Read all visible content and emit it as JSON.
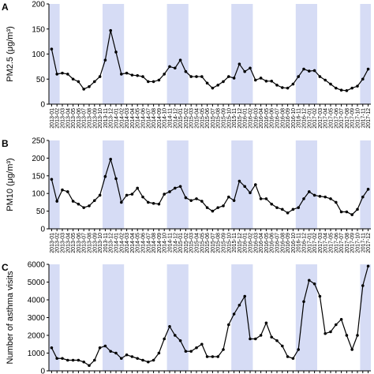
{
  "chart_data": [
    {
      "type": "line",
      "panel": "A",
      "ylabel": "PM2.5 (μg/m³)",
      "color": "#000000",
      "shade_color": "#d6dcf5",
      "categories": [
        "2013-01",
        "2013-02",
        "2013-03",
        "2013-04",
        "2013-05",
        "2013-06",
        "2013-07",
        "2013-08",
        "2013-09",
        "2013-10",
        "2013-11",
        "2013-12",
        "2014-01",
        "2014-02",
        "2014-03",
        "2014-04",
        "2014-05",
        "2014-06",
        "2014-07",
        "2014-08",
        "2014-09",
        "2014-10",
        "2014-11",
        "2014-12",
        "2015-01",
        "2015-02",
        "2015-03",
        "2015-04",
        "2015-05",
        "2015-06",
        "2015-07",
        "2015-08",
        "2015-09",
        "2015-10",
        "2015-11",
        "2015-12",
        "2016-01",
        "2016-02",
        "2016-03",
        "2016-04",
        "2016-05",
        "2016-06",
        "2016-07",
        "2016-08",
        "2016-09",
        "2016-10",
        "2016-11",
        "2016-12",
        "2017-01",
        "2017-02",
        "2017-03",
        "2017-04",
        "2017-05",
        "2017-06",
        "2017-07",
        "2017-08",
        "2017-09",
        "2017-10",
        "2017-11",
        "2017-12"
      ],
      "shaded": [
        [
          "2013-01",
          "2013-02"
        ],
        [
          "2013-11",
          "2014-02"
        ],
        [
          "2014-11",
          "2015-02"
        ],
        [
          "2015-11",
          "2016-02"
        ],
        [
          "2016-11",
          "2017-02"
        ],
        [
          "2017-11",
          "2017-12"
        ]
      ],
      "values": [
        110,
        60,
        62,
        60,
        50,
        45,
        30,
        35,
        45,
        55,
        88,
        147,
        104,
        60,
        62,
        58,
        57,
        55,
        45,
        45,
        48,
        60,
        75,
        72,
        88,
        65,
        55,
        55,
        55,
        42,
        32,
        38,
        45,
        55,
        52,
        80,
        65,
        72,
        48,
        52,
        46,
        46,
        38,
        33,
        32,
        40,
        55,
        70,
        66,
        67,
        55,
        48,
        40,
        32,
        28,
        27,
        32,
        36,
        50,
        70
      ],
      "ylim": [
        0,
        200
      ],
      "yticks": [
        0,
        50,
        100,
        150,
        200
      ]
    },
    {
      "type": "line",
      "panel": "B",
      "ylabel": "PM10 (μg/m³)",
      "color": "#000000",
      "shade_color": "#d6dcf5",
      "categories": [
        "2013-01",
        "2013-02",
        "2013-03",
        "2013-04",
        "2013-05",
        "2013-06",
        "2013-07",
        "2013-08",
        "2013-09",
        "2013-10",
        "2013-11",
        "2013-12",
        "2014-01",
        "2014-02",
        "2014-03",
        "2014-04",
        "2014-05",
        "2014-06",
        "2014-07",
        "2014-08",
        "2014-09",
        "2014-10",
        "2014-11",
        "2014-12",
        "2015-01",
        "2015-02",
        "2015-03",
        "2015-04",
        "2015-05",
        "2015-06",
        "2015-07",
        "2015-08",
        "2015-09",
        "2015-10",
        "2015-11",
        "2015-12",
        "2016-01",
        "2016-02",
        "2016-03",
        "2016-04",
        "2016-05",
        "2016-06",
        "2016-07",
        "2016-08",
        "2016-09",
        "2016-10",
        "2016-11",
        "2016-12",
        "2017-01",
        "2017-02",
        "2017-03",
        "2017-04",
        "2017-05",
        "2017-06",
        "2017-07",
        "2017-08",
        "2017-09",
        "2017-10",
        "2017-11",
        "2017-12"
      ],
      "shaded": [
        [
          "2013-01",
          "2013-02"
        ],
        [
          "2013-11",
          "2014-02"
        ],
        [
          "2014-11",
          "2015-02"
        ],
        [
          "2015-11",
          "2016-02"
        ],
        [
          "2016-11",
          "2017-02"
        ],
        [
          "2017-11",
          "2017-12"
        ]
      ],
      "values": [
        140,
        78,
        110,
        105,
        78,
        70,
        60,
        65,
        80,
        95,
        148,
        197,
        142,
        75,
        95,
        98,
        115,
        90,
        75,
        72,
        70,
        98,
        105,
        115,
        120,
        88,
        80,
        85,
        78,
        60,
        50,
        60,
        65,
        90,
        80,
        135,
        120,
        102,
        125,
        85,
        85,
        70,
        60,
        55,
        45,
        55,
        60,
        85,
        105,
        95,
        92,
        90,
        85,
        75,
        48,
        48,
        40,
        55,
        90,
        112
      ],
      "ylim": [
        0,
        250
      ],
      "yticks": [
        0,
        50,
        100,
        150,
        200,
        250
      ]
    },
    {
      "type": "line",
      "panel": "C",
      "ylabel": "Number of asthma visits",
      "color": "#000000",
      "shade_color": "#d6dcf5",
      "shaded": [
        [
          "2013-01",
          "2013-02"
        ],
        [
          "2013-11",
          "2014-02"
        ],
        [
          "2014-11",
          "2015-02"
        ],
        [
          "2015-11",
          "2016-02"
        ],
        [
          "2016-11",
          "2017-02"
        ],
        [
          "2017-11",
          "2017-12"
        ]
      ],
      "values": [
        1300,
        700,
        700,
        600,
        600,
        600,
        500,
        300,
        600,
        1300,
        1400,
        1100,
        1000,
        700,
        900,
        800,
        700,
        600,
        500,
        600,
        1000,
        1800,
        2500,
        2000,
        1700,
        1100,
        1100,
        1300,
        1500,
        800,
        800,
        800,
        1200,
        2600,
        3200,
        3700,
        4200,
        1800,
        1800,
        2000,
        2700,
        1900,
        1700,
        1400,
        800,
        700,
        1200,
        3900,
        5100,
        4900,
        4200,
        2100,
        2200,
        2600,
        2900,
        2000,
        1200,
        2000,
        4800,
        5900
      ],
      "ylim": [
        0,
        6000
      ],
      "yticks": [
        0,
        1000,
        2000,
        3000,
        4000,
        5000,
        6000
      ]
    }
  ]
}
